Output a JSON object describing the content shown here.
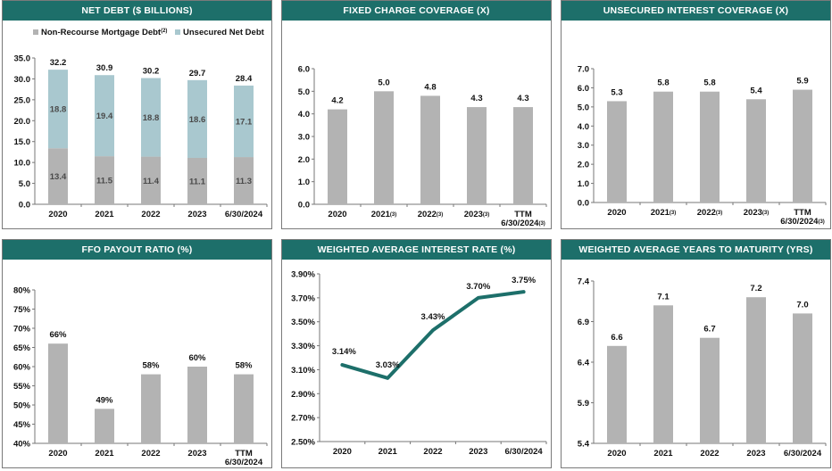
{
  "colors": {
    "header": "#1d6f6a",
    "bar": "#b3b3b3",
    "unsecured": "#a9c8cf",
    "line": "#1d6f6a"
  },
  "panels": {
    "net_debt": {
      "title": "NET DEBT ($ BILLIONS)"
    },
    "fixed_charge": {
      "title": "FIXED CHARGE COVERAGE (X)"
    },
    "unsecured_interest": {
      "title": "UNSECURED INTEREST COVERAGE (X)"
    },
    "ffo_payout": {
      "title": "FFO PAYOUT RATIO (%)"
    },
    "interest_rate": {
      "title": "WEIGHTED AVERAGE INTEREST RATE (%)"
    },
    "years_maturity": {
      "title": "WEIGHTED AVERAGE YEARS TO MATURITY (YRS)"
    }
  },
  "chart_data": [
    {
      "id": "net_debt",
      "type": "bar",
      "stacked": true,
      "title": "NET DEBT ($ BILLIONS)",
      "categories": [
        "2020",
        "2021",
        "2022",
        "2023",
        "6/30/2024"
      ],
      "series": [
        {
          "name": "Non-Recourse Mortgage Debt",
          "note": "(2)",
          "values": [
            13.4,
            11.5,
            11.4,
            11.1,
            11.3
          ],
          "labels": [
            "13.4",
            "11.5",
            "11.4",
            "11.1",
            "11.3"
          ]
        },
        {
          "name": "Unsecured Net Debt",
          "values": [
            18.8,
            19.4,
            18.8,
            18.6,
            17.1
          ],
          "labels": [
            "18.8",
            "19.4",
            "18.8",
            "18.6",
            "17.1"
          ]
        }
      ],
      "totals": [
        "32.2",
        "30.9",
        "30.2",
        "29.7",
        "28.4"
      ],
      "ylim": [
        0,
        35
      ],
      "yticks": [
        "0.0",
        "5.0",
        "10.0",
        "15.0",
        "20.0",
        "25.0",
        "30.0",
        "35.0"
      ],
      "legend": "top"
    },
    {
      "id": "fixed_charge",
      "type": "bar",
      "title": "FIXED CHARGE COVERAGE (X)",
      "categories": [
        "2020",
        "2021",
        "2022",
        "2023",
        "TTM 6/30/2024"
      ],
      "category_lines": [
        [
          "2020"
        ],
        [
          "2021"
        ],
        [
          "2022"
        ],
        [
          "2023"
        ],
        [
          "TTM",
          "6/30/2024"
        ]
      ],
      "category_notes": [
        "",
        "(3)",
        "(3)",
        "(3)",
        "(3)"
      ],
      "values": [
        4.2,
        5.0,
        4.8,
        4.3,
        4.3
      ],
      "labels": [
        "4.2",
        "5.0",
        "4.8",
        "4.3",
        "4.3"
      ],
      "ylim": [
        0,
        6
      ],
      "yticks": [
        "0.0",
        "1.0",
        "2.0",
        "3.0",
        "4.0",
        "5.0",
        "6.0"
      ]
    },
    {
      "id": "unsecured_interest",
      "type": "bar",
      "title": "UNSECURED INTEREST COVERAGE (X)",
      "categories": [
        "2020",
        "2021",
        "2022",
        "2023",
        "TTM 6/30/2024"
      ],
      "category_lines": [
        [
          "2020"
        ],
        [
          "2021"
        ],
        [
          "2022"
        ],
        [
          "2023"
        ],
        [
          "TTM",
          "6/30/2024"
        ]
      ],
      "category_notes": [
        "",
        "(3)",
        "(3)",
        "(3)",
        "(3)"
      ],
      "values": [
        5.3,
        5.8,
        5.8,
        5.4,
        5.9
      ],
      "labels": [
        "5.3",
        "5.8",
        "5.8",
        "5.4",
        "5.9"
      ],
      "ylim": [
        0,
        7
      ],
      "yticks": [
        "0.0",
        "1.0",
        "2.0",
        "3.0",
        "4.0",
        "5.0",
        "6.0",
        "7.0"
      ]
    },
    {
      "id": "ffo_payout",
      "type": "bar",
      "title": "FFO PAYOUT RATIO (%)",
      "categories": [
        "2020",
        "2021",
        "2022",
        "2023",
        "TTM 6/30/2024"
      ],
      "category_lines": [
        [
          "2020"
        ],
        [
          "2021"
        ],
        [
          "2022"
        ],
        [
          "2023"
        ],
        [
          "TTM",
          "6/30/2024"
        ]
      ],
      "values": [
        66,
        49,
        58,
        60,
        58
      ],
      "labels": [
        "66%",
        "49%",
        "58%",
        "60%",
        "58%"
      ],
      "ylim": [
        40,
        80
      ],
      "yticks": [
        "40%",
        "45%",
        "50%",
        "55%",
        "60%",
        "65%",
        "70%",
        "75%",
        "80%"
      ]
    },
    {
      "id": "interest_rate",
      "type": "line",
      "title": "WEIGHTED AVERAGE INTEREST RATE (%)",
      "categories": [
        "2020",
        "2021",
        "2022",
        "2023",
        "6/30/2024"
      ],
      "values": [
        3.14,
        3.03,
        3.43,
        3.7,
        3.75
      ],
      "labels": [
        "3.14%",
        "3.03%",
        "3.43%",
        "3.70%",
        "3.75%"
      ],
      "ylim": [
        2.5,
        3.9
      ],
      "yticks": [
        "2.50%",
        "2.70%",
        "2.90%",
        "3.10%",
        "3.30%",
        "3.50%",
        "3.70%",
        "3.90%"
      ]
    },
    {
      "id": "years_maturity",
      "type": "bar",
      "title": "WEIGHTED AVERAGE YEARS TO MATURITY (YRS)",
      "categories": [
        "2020",
        "2021",
        "2022",
        "2023",
        "6/30/2024"
      ],
      "values": [
        6.6,
        7.1,
        6.7,
        7.2,
        7.0
      ],
      "labels": [
        "6.6",
        "7.1",
        "6.7",
        "7.2",
        "7.0"
      ],
      "ylim": [
        5.4,
        7.4
      ],
      "yticks": [
        "5.4",
        "5.9",
        "6.4",
        "6.9",
        "7.4"
      ]
    }
  ]
}
